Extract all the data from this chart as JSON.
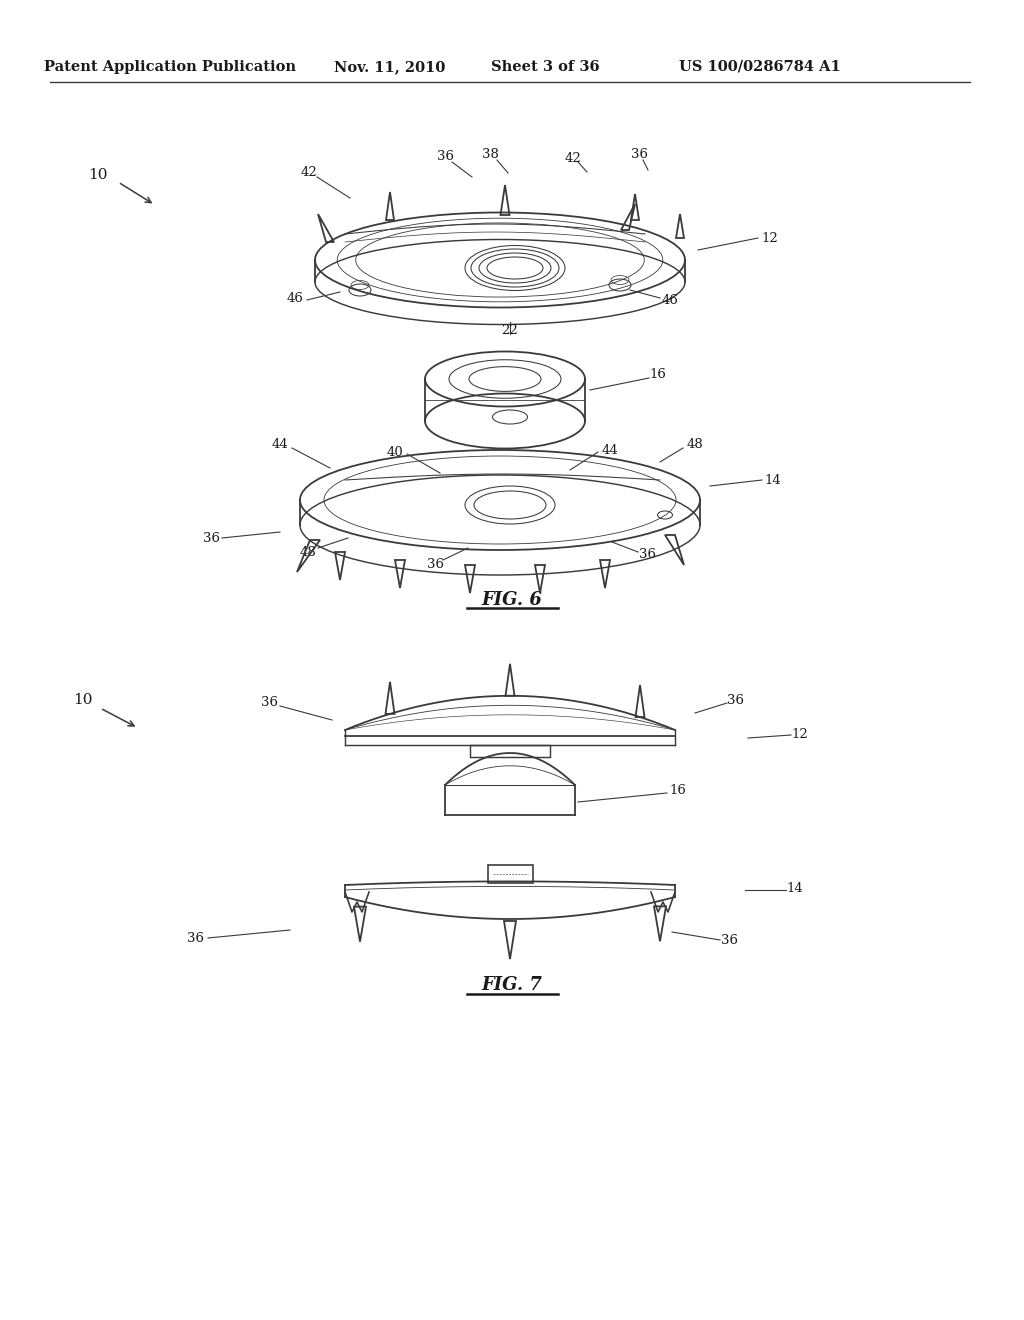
{
  "bg_color": "#ffffff",
  "header_text": "Patent Application Publication",
  "header_date": "Nov. 11, 2010",
  "header_sheet": "Sheet 3 of 36",
  "header_patent": "US 100/0286784 A1",
  "fig6_label": "FIG. 6",
  "fig7_label": "FIG. 7",
  "text_color": "#1a1a1a",
  "line_color": "#3a3a3a",
  "line_width": 1.3,
  "thin_line": 0.75
}
